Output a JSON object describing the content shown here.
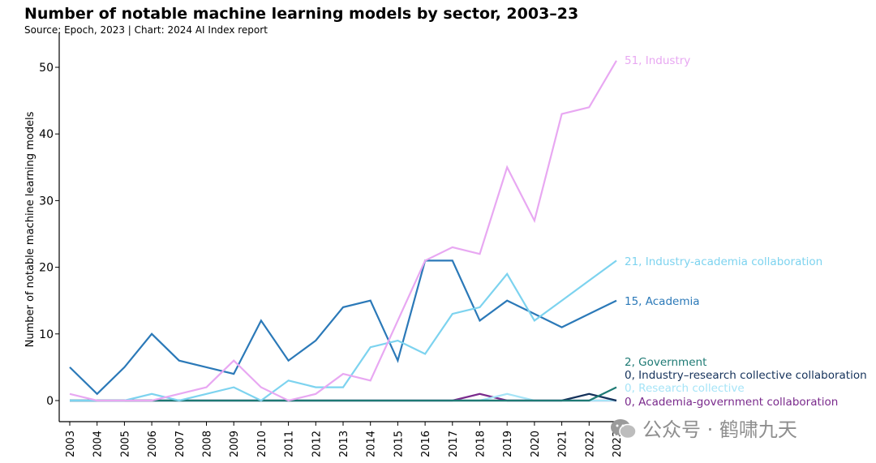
{
  "header": {
    "title": "Number of notable machine learning models by sector, 2003–23",
    "subtitle": "Source: Epoch, 2023 | Chart: 2024 AI Index report"
  },
  "watermark": {
    "text": "公众号 · 鹤啸九天",
    "icon": "wechat-icon"
  },
  "chart_data": {
    "type": "line",
    "ylabel": "Number of notable machine learning models",
    "xlabel": "",
    "ylim": [
      0,
      53
    ],
    "yticks": [
      0,
      10,
      20,
      30,
      40,
      50
    ],
    "x": [
      "2003",
      "2004",
      "2005",
      "2006",
      "2007",
      "2008",
      "2009",
      "2010",
      "2011",
      "2012",
      "2013",
      "2014",
      "2015",
      "2016",
      "2017",
      "2018",
      "2019",
      "2020",
      "2021",
      "2022",
      "2023"
    ],
    "grid": false,
    "series": [
      {
        "name": "Industry",
        "label": "51, Industry",
        "color": "#e8a8f2",
        "values": [
          1,
          0,
          0,
          0,
          1,
          2,
          6,
          2,
          0,
          1,
          4,
          3,
          12,
          21,
          23,
          22,
          35,
          27,
          43,
          44,
          51
        ]
      },
      {
        "name": "Industry-academia collaboration",
        "label": "21, Industry-academia collaboration",
        "color": "#7dd3ef",
        "values": [
          0,
          0,
          0,
          1,
          0,
          1,
          2,
          0,
          3,
          2,
          2,
          8,
          9,
          7,
          13,
          14,
          19,
          12,
          15,
          18,
          21
        ]
      },
      {
        "name": "Academia",
        "label": "15, Academia",
        "color": "#2b79b8",
        "values": [
          5,
          1,
          5,
          10,
          6,
          5,
          4,
          12,
          6,
          9,
          14,
          15,
          6,
          21,
          21,
          12,
          15,
          13,
          11,
          13,
          15
        ]
      },
      {
        "name": "Government",
        "label": "2, Government",
        "color": "#1e7a74",
        "values": [
          0,
          0,
          0,
          0,
          0,
          0,
          0,
          0,
          0,
          0,
          0,
          0,
          0,
          0,
          0,
          0,
          0,
          0,
          0,
          0,
          2
        ]
      },
      {
        "name": "Industry–research collective collaboration",
        "label": "0, Industry–research collective collaboration",
        "color": "#14315a",
        "values": [
          0,
          0,
          0,
          0,
          0,
          0,
          0,
          0,
          0,
          0,
          0,
          0,
          0,
          0,
          0,
          0,
          0,
          0,
          0,
          1,
          0
        ]
      },
      {
        "name": "Research collective",
        "label": "0, Research collective",
        "color": "#a6e4f7",
        "values": [
          0,
          0,
          0,
          0,
          0,
          0,
          0,
          0,
          0,
          0,
          0,
          0,
          0,
          0,
          0,
          0,
          1,
          0,
          0,
          0,
          0
        ]
      },
      {
        "name": "Academia-government collaboration",
        "label": "0, Academia-government collaboration",
        "color": "#7a2a8c",
        "values": [
          0,
          0,
          0,
          0,
          0,
          0,
          0,
          0,
          0,
          0,
          0,
          0,
          0,
          0,
          0,
          1,
          0,
          0,
          0,
          0,
          0
        ]
      }
    ]
  }
}
